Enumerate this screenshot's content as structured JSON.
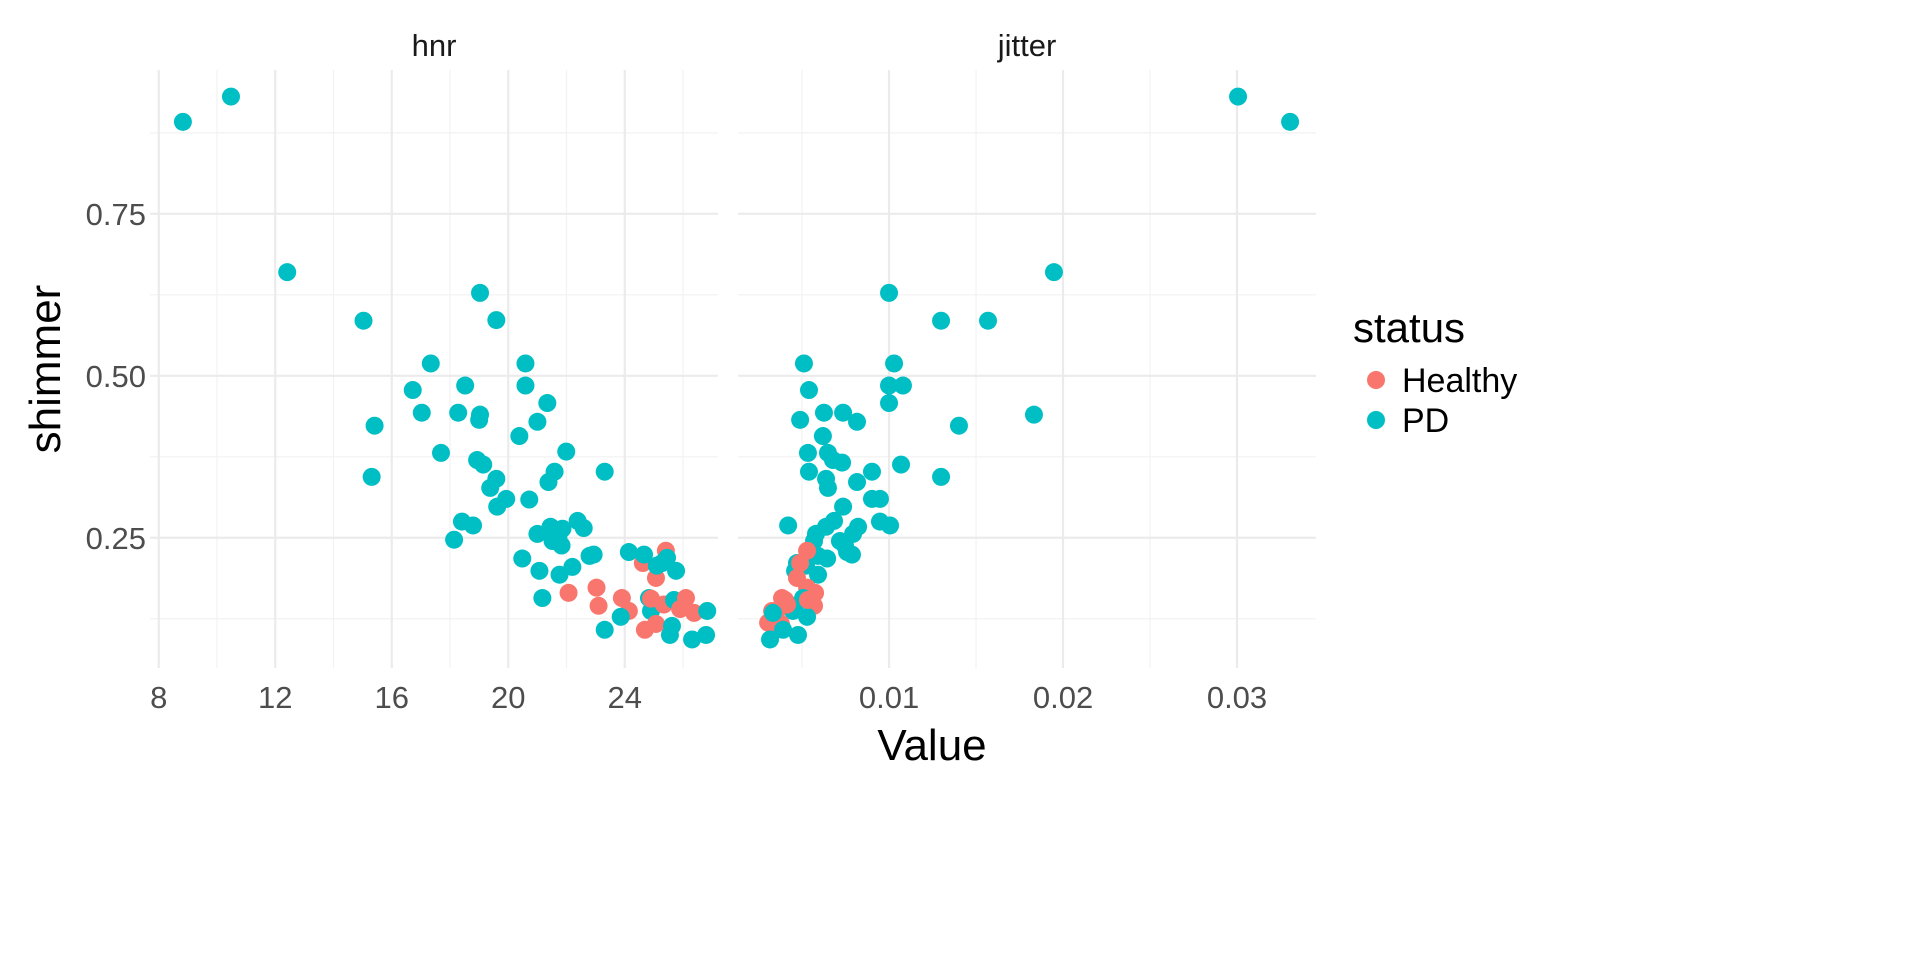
{
  "chart_data": {
    "type": "scatter",
    "ylabel": "shimmer",
    "xlabel": "Value",
    "y_ticks": [
      "0.25",
      "0.50",
      "0.75"
    ],
    "y_tick_values": [
      0.25,
      0.5,
      0.75
    ],
    "ylim": [
      0.049,
      0.972
    ],
    "legend": {
      "title": "status",
      "placement": "right",
      "entries": [
        {
          "label": "Healthy",
          "color": "#F8766D"
        },
        {
          "label": "PD",
          "color": "#00BFC4"
        }
      ]
    },
    "facets": [
      {
        "label": "hnr",
        "xlim": [
          7.7,
          27.2
        ],
        "x_ticks": [
          "8",
          "12",
          "16",
          "20",
          "24"
        ],
        "x_tick_values": [
          8,
          12,
          16,
          20,
          24
        ],
        "x_minor": [
          10,
          14,
          18,
          22,
          26
        ],
        "points": [
          [
            8.83,
            0.892,
            "PD"
          ],
          [
            10.48,
            0.931,
            "PD"
          ],
          [
            12.41,
            0.66,
            "PD"
          ],
          [
            15.03,
            0.585,
            "PD"
          ],
          [
            15.41,
            0.423,
            "PD"
          ],
          [
            15.31,
            0.344,
            "PD"
          ],
          [
            17.34,
            0.519,
            "PD"
          ],
          [
            16.72,
            0.478,
            "PD"
          ],
          [
            17.03,
            0.443,
            "PD"
          ],
          [
            17.69,
            0.381,
            "PD"
          ],
          [
            18.52,
            0.485,
            "PD"
          ],
          [
            18.28,
            0.443,
            "PD"
          ],
          [
            18.41,
            0.275,
            "PD"
          ],
          [
            18.14,
            0.247,
            "PD"
          ],
          [
            18.79,
            0.269,
            "PD"
          ],
          [
            19.03,
            0.628,
            "PD"
          ],
          [
            19.59,
            0.586,
            "PD"
          ],
          [
            19.03,
            0.44,
            "PD"
          ],
          [
            19.0,
            0.432,
            "PD"
          ],
          [
            18.93,
            0.37,
            "PD"
          ],
          [
            19.14,
            0.363,
            "PD"
          ],
          [
            19.38,
            0.327,
            "PD"
          ],
          [
            19.59,
            0.341,
            "PD"
          ],
          [
            19.93,
            0.31,
            "PD"
          ],
          [
            19.62,
            0.298,
            "PD"
          ],
          [
            20.59,
            0.519,
            "PD"
          ],
          [
            20.59,
            0.485,
            "PD"
          ],
          [
            20.38,
            0.407,
            "PD"
          ],
          [
            21.0,
            0.429,
            "PD"
          ],
          [
            21.34,
            0.458,
            "PD"
          ],
          [
            20.72,
            0.309,
            "PD"
          ],
          [
            20.48,
            0.218,
            "PD"
          ],
          [
            21.0,
            0.256,
            "PD"
          ],
          [
            21.07,
            0.199,
            "PD"
          ],
          [
            21.17,
            0.157,
            "PD"
          ],
          [
            21.99,
            0.383,
            "PD"
          ],
          [
            21.59,
            0.352,
            "PD"
          ],
          [
            21.38,
            0.336,
            "PD"
          ],
          [
            21.45,
            0.267,
            "PD"
          ],
          [
            21.52,
            0.245,
            "PD"
          ],
          [
            21.72,
            0.251,
            "PD"
          ],
          [
            21.83,
            0.238,
            "PD"
          ],
          [
            21.86,
            0.264,
            "PD"
          ],
          [
            21.76,
            0.193,
            "PD"
          ],
          [
            22.2,
            0.205,
            "PD"
          ],
          [
            22.38,
            0.276,
            "PD"
          ],
          [
            22.59,
            0.265,
            "PD"
          ],
          [
            22.79,
            0.222,
            "PD"
          ],
          [
            22.93,
            0.224,
            "PD"
          ],
          [
            23.31,
            0.352,
            "PD"
          ],
          [
            23.31,
            0.108,
            "PD"
          ],
          [
            22.07,
            0.165,
            "Healthy"
          ],
          [
            23.03,
            0.173,
            "Healthy"
          ],
          [
            23.1,
            0.145,
            "Healthy"
          ],
          [
            23.9,
            0.157,
            "Healthy"
          ],
          [
            24.14,
            0.137,
            "Healthy"
          ],
          [
            24.14,
            0.228,
            "PD"
          ],
          [
            23.86,
            0.128,
            "PD"
          ],
          [
            24.62,
            0.211,
            "Healthy"
          ],
          [
            24.66,
            0.224,
            "PD"
          ],
          [
            25.41,
            0.23,
            "Healthy"
          ],
          [
            25.07,
            0.188,
            "Healthy"
          ],
          [
            25.1,
            0.207,
            "PD"
          ],
          [
            25.28,
            0.211,
            "PD"
          ],
          [
            25.45,
            0.219,
            "PD"
          ],
          [
            25.76,
            0.199,
            "PD"
          ],
          [
            24.83,
            0.157,
            "PD"
          ],
          [
            24.9,
            0.137,
            "PD"
          ],
          [
            24.9,
            0.156,
            "Healthy"
          ],
          [
            25.07,
            0.117,
            "Healthy"
          ],
          [
            24.69,
            0.108,
            "Healthy"
          ],
          [
            25.34,
            0.147,
            "Healthy"
          ],
          [
            25.69,
            0.154,
            "PD"
          ],
          [
            25.9,
            0.14,
            "Healthy"
          ],
          [
            26.1,
            0.157,
            "Healthy"
          ],
          [
            26.38,
            0.134,
            "Healthy"
          ],
          [
            26.83,
            0.137,
            "PD"
          ],
          [
            25.62,
            0.114,
            "PD"
          ],
          [
            25.55,
            0.1,
            "PD"
          ],
          [
            26.31,
            0.093,
            "PD"
          ],
          [
            26.79,
            0.1,
            "PD"
          ]
        ]
      },
      {
        "label": "jitter",
        "xlim": [
          0.00132,
          0.03454
        ],
        "x_ticks": [
          "0.01",
          "0.02",
          "0.03"
        ],
        "x_tick_values": [
          0.01,
          0.02,
          0.03
        ],
        "x_minor": [
          0.005,
          0.015,
          0.025
        ],
        "points": [
          [
            0.03006,
            0.931,
            "PD"
          ],
          [
            0.03305,
            0.892,
            "PD"
          ],
          [
            0.01948,
            0.66,
            "PD"
          ],
          [
            0.01299,
            0.585,
            "PD"
          ],
          [
            0.01569,
            0.585,
            "PD"
          ],
          [
            0.01833,
            0.44,
            "PD"
          ],
          [
            0.01402,
            0.423,
            "PD"
          ],
          [
            0.01299,
            0.344,
            "PD"
          ],
          [
            0.01,
            0.628,
            "PD"
          ],
          [
            0.01029,
            0.519,
            "PD"
          ],
          [
            0.0108,
            0.485,
            "PD"
          ],
          [
            0.01,
            0.485,
            "PD"
          ],
          [
            0.01,
            0.458,
            "PD"
          ],
          [
            0.01069,
            0.363,
            "PD"
          ],
          [
            0.01006,
            0.269,
            "PD"
          ],
          [
            0.00948,
            0.275,
            "PD"
          ],
          [
            0.00948,
            0.31,
            "PD"
          ],
          [
            0.00902,
            0.31,
            "PD"
          ],
          [
            0.00902,
            0.352,
            "PD"
          ],
          [
            0.00816,
            0.336,
            "PD"
          ],
          [
            0.00816,
            0.429,
            "PD"
          ],
          [
            0.00736,
            0.443,
            "PD"
          ],
          [
            0.00626,
            0.443,
            "PD"
          ],
          [
            0.0062,
            0.407,
            "PD"
          ],
          [
            0.00649,
            0.381,
            "PD"
          ],
          [
            0.00678,
            0.37,
            "PD"
          ],
          [
            0.0073,
            0.366,
            "PD"
          ],
          [
            0.00638,
            0.341,
            "PD"
          ],
          [
            0.00649,
            0.327,
            "PD"
          ],
          [
            0.00736,
            0.298,
            "PD"
          ],
          [
            0.00822,
            0.267,
            "PD"
          ],
          [
            0.00793,
            0.256,
            "PD"
          ],
          [
            0.00684,
            0.276,
            "PD"
          ],
          [
            0.00638,
            0.267,
            "PD"
          ],
          [
            0.00511,
            0.519,
            "PD"
          ],
          [
            0.0054,
            0.478,
            "PD"
          ],
          [
            0.00489,
            0.432,
            "PD"
          ],
          [
            0.00534,
            0.381,
            "PD"
          ],
          [
            0.0054,
            0.352,
            "PD"
          ],
          [
            0.0042,
            0.269,
            "PD"
          ],
          [
            0.00718,
            0.245,
            "PD"
          ],
          [
            0.00747,
            0.238,
            "PD"
          ],
          [
            0.00787,
            0.224,
            "PD"
          ],
          [
            0.00759,
            0.228,
            "PD"
          ],
          [
            0.00644,
            0.218,
            "PD"
          ],
          [
            0.0058,
            0.256,
            "PD"
          ],
          [
            0.00569,
            0.245,
            "PD"
          ],
          [
            0.00592,
            0.222,
            "PD"
          ],
          [
            0.00592,
            0.193,
            "PD"
          ],
          [
            0.00523,
            0.207,
            "PD"
          ],
          [
            0.00483,
            0.205,
            "PD"
          ],
          [
            0.0046,
            0.199,
            "PD"
          ],
          [
            0.00471,
            0.211,
            "PD"
          ],
          [
            0.00529,
            0.23,
            "Healthy"
          ],
          [
            0.00489,
            0.211,
            "Healthy"
          ],
          [
            0.00471,
            0.188,
            "Healthy"
          ],
          [
            0.00557,
            0.157,
            "Healthy"
          ],
          [
            0.00575,
            0.165,
            "Healthy"
          ],
          [
            0.00529,
            0.173,
            "Healthy"
          ],
          [
            0.0046,
            0.145,
            "PD"
          ],
          [
            0.00569,
            0.145,
            "Healthy"
          ],
          [
            0.00506,
            0.157,
            "PD"
          ],
          [
            0.00448,
            0.137,
            "PD"
          ],
          [
            0.00529,
            0.128,
            "PD"
          ],
          [
            0.00534,
            0.154,
            "Healthy"
          ],
          [
            0.00385,
            0.157,
            "Healthy"
          ],
          [
            0.00414,
            0.147,
            "Healthy"
          ],
          [
            0.00356,
            0.137,
            "Healthy"
          ],
          [
            0.00379,
            0.117,
            "Healthy"
          ],
          [
            0.0035,
            0.108,
            "Healthy"
          ],
          [
            0.00328,
            0.137,
            "Healthy"
          ],
          [
            0.00305,
            0.119,
            "Healthy"
          ],
          [
            0.00333,
            0.134,
            "PD"
          ],
          [
            0.00316,
            0.093,
            "PD"
          ],
          [
            0.00391,
            0.108,
            "PD"
          ],
          [
            0.00477,
            0.1,
            "PD"
          ],
          [
            0.00402,
            0.154,
            "Healthy"
          ]
        ]
      }
    ]
  }
}
